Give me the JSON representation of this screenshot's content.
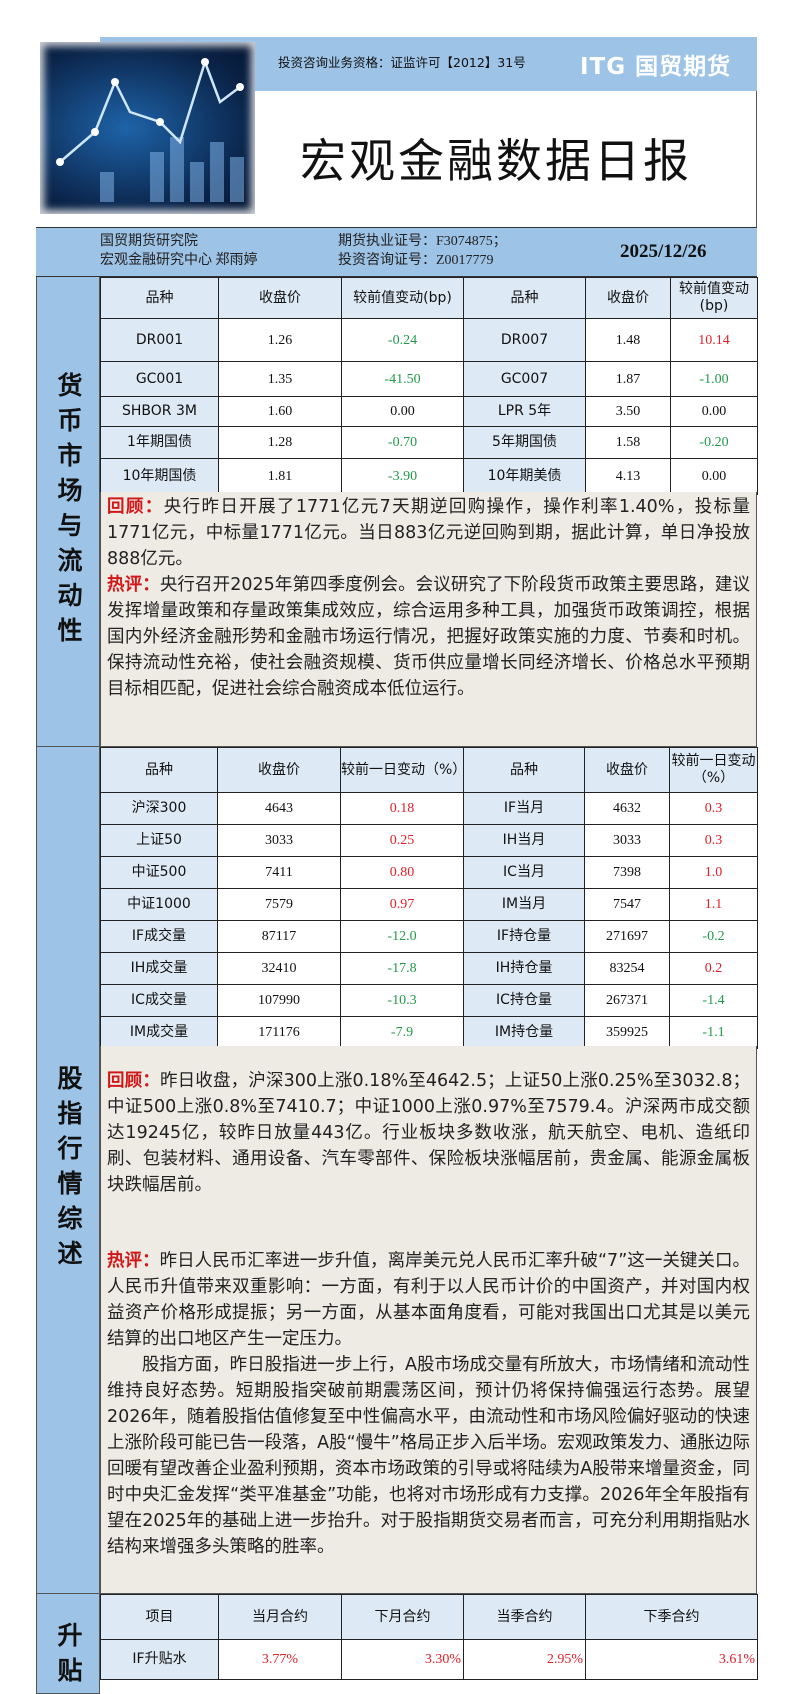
{
  "header": {
    "license": "投资咨询业务资格：证监许可【2012】31号",
    "logo": "ITG 国贸期货",
    "title": "宏观金融数据日报",
    "org_line1": "国贸期货研究院",
    "org_line2": "宏观金融研究中心 郑雨婷",
    "cert_line1": "期货执业证号：F3074875；",
    "cert_line2": "投资咨询证号：Z0017779",
    "date": "2025/12/26"
  },
  "money_market": {
    "section_label": "货币市场与流动性",
    "headers": [
      "品种",
      "收盘价",
      "较前值变动(bp)",
      "品种",
      "收盘价",
      "较前值变动(bp)"
    ],
    "rows": [
      {
        "name1": "DR001",
        "close1": "1.26",
        "chg1": "-0.24",
        "dir1": "down",
        "name2": "DR007",
        "close2": "1.48",
        "chg2": "10.14",
        "dir2": "up"
      },
      {
        "name1": "GC001",
        "close1": "1.35",
        "chg1": "-41.50",
        "dir1": "down",
        "name2": "GC007",
        "close2": "1.87",
        "chg2": "-1.00",
        "dir2": "down"
      },
      {
        "name1": "SHBOR 3M",
        "close1": "1.60",
        "chg1": "0.00",
        "dir1": "flat",
        "name2": "LPR 5年",
        "close2": "3.50",
        "chg2": "0.00",
        "dir2": "flat"
      },
      {
        "name1": "1年期国债",
        "close1": "1.28",
        "chg1": "-0.70",
        "dir1": "down",
        "name2": "5年期国债",
        "close2": "1.58",
        "chg2": "-0.20",
        "dir2": "down"
      },
      {
        "name1": "10年期国债",
        "close1": "1.81",
        "chg1": "-3.90",
        "dir1": "down",
        "name2": "10年期美债",
        "close2": "4.13",
        "chg2": "0.00",
        "dir2": "flat"
      }
    ],
    "review_label": "回顾：",
    "review": "央行昨日开展了1771亿元7天期逆回购操作，操作利率1.40%，投标量1771亿元，中标量1771亿元。当日883亿元逆回购到期，据此计算，单日净投放888亿元。",
    "comment_label": "热评：",
    "comment": "央行召开2025年第四季度例会。会议研究了下阶段货币政策主要思路，建议发挥增量政策和存量政策集成效应，综合运用多种工具，加强货币政策调控，根据国内外经济金融形势和金融市场运行情况，把握好政策实施的力度、节奏和时机。保持流动性充裕，使社会融资规模、货币供应量增长同经济增长、价格总水平预期目标相匹配，促进社会综合融资成本低位运行。"
  },
  "stock_index": {
    "section_label": "股指行情综述",
    "headers": [
      "品种",
      "收盘价",
      "较前一日变动（%）",
      "品种",
      "收盘价",
      "较前一日变动（%）"
    ],
    "rows": [
      {
        "name1": "沪深300",
        "close1": "4643",
        "chg1": "0.18",
        "dir1": "up",
        "name2": "IF当月",
        "close2": "4632",
        "chg2": "0.3",
        "dir2": "up"
      },
      {
        "name1": "上证50",
        "close1": "3033",
        "chg1": "0.25",
        "dir1": "up",
        "name2": "IH当月",
        "close2": "3033",
        "chg2": "0.3",
        "dir2": "up"
      },
      {
        "name1": "中证500",
        "close1": "7411",
        "chg1": "0.80",
        "dir1": "up",
        "name2": "IC当月",
        "close2": "7398",
        "chg2": "1.0",
        "dir2": "up"
      },
      {
        "name1": "中证1000",
        "close1": "7579",
        "chg1": "0.97",
        "dir1": "up",
        "name2": "IM当月",
        "close2": "7547",
        "chg2": "1.1",
        "dir2": "up"
      },
      {
        "name1": "IF成交量",
        "close1": "87117",
        "chg1": "-12.0",
        "dir1": "down",
        "name2": "IF持仓量",
        "close2": "271697",
        "chg2": "-0.2",
        "dir2": "down"
      },
      {
        "name1": "IH成交量",
        "close1": "32410",
        "chg1": "-17.8",
        "dir1": "down",
        "name2": "IH持仓量",
        "close2": "83254",
        "chg2": "0.2",
        "dir2": "up"
      },
      {
        "name1": "IC成交量",
        "close1": "107990",
        "chg1": "-10.3",
        "dir1": "down",
        "name2": "IC持仓量",
        "close2": "267371",
        "chg2": "-1.4",
        "dir2": "down"
      },
      {
        "name1": "IM成交量",
        "close1": "171176",
        "chg1": "-7.9",
        "dir1": "down",
        "name2": "IM持仓量",
        "close2": "359925",
        "chg2": "-1.1",
        "dir2": "down"
      }
    ],
    "review_label": "回顾：",
    "review": "昨日收盘，沪深300上涨0.18%至4642.5；上证50上涨0.25%至3032.8；中证500上涨0.8%至7410.7；中证1000上涨0.97%至7579.4。沪深两市成交额达19245亿，较昨日放量443亿。行业板块多数收涨，航天航空、电机、造纸印刷、包装材料、通用设备、汽车零部件、保险板块涨幅居前，贵金属、能源金属板块跌幅居前。",
    "comment_label": "热评：",
    "comment": "昨日人民币汇率进一步升值，离岸美元兑人民币汇率升破“7”这一关键关口。人民币升值带来双重影响：一方面，有利于以人民币计价的中国资产，并对国内权益资产价格形成提振；另一方面，从基本面角度看，可能对我国出口尤其是以美元结算的出口地区产生一定压力。",
    "comment2": "股指方面，昨日股指进一步上行，A股市场成交量有所放大，市场情绪和流动性维持良好态势。短期股指突破前期震荡区间，预计仍将保持偏强运行态势。展望2026年，随着股指估值修复至中性偏高水平，由流动性和市场风险偏好驱动的快速上涨阶段可能已告一段落，A股“慢牛”格局正步入后半场。宏观政策发力、通胀边际回暖有望改善企业盈利预期，资本市场政策的引导或将陆续为A股带来增量资金，同时中央汇金发挥“类平准基金”功能，也将对市场形成有力支撑。2026年全年股指有望在2025年的基础上进一步抬升。对于股指期货交易者而言，可充分利用期指贴水结构来增强多头策略的胜率。"
  },
  "basis": {
    "section_label": "升贴",
    "headers": [
      "项目",
      "当月合约",
      "下月合约",
      "当季合约",
      "下季合约"
    ],
    "rows": [
      {
        "name": "IF升贴水",
        "m1": "3.77%",
        "m2": "3.30%",
        "q1": "2.95%",
        "q2": "3.61%"
      }
    ]
  },
  "colors": {
    "up": "#e0202a",
    "down": "#22994a",
    "band": "#9dc3e6",
    "cell": "#dde9f5"
  }
}
